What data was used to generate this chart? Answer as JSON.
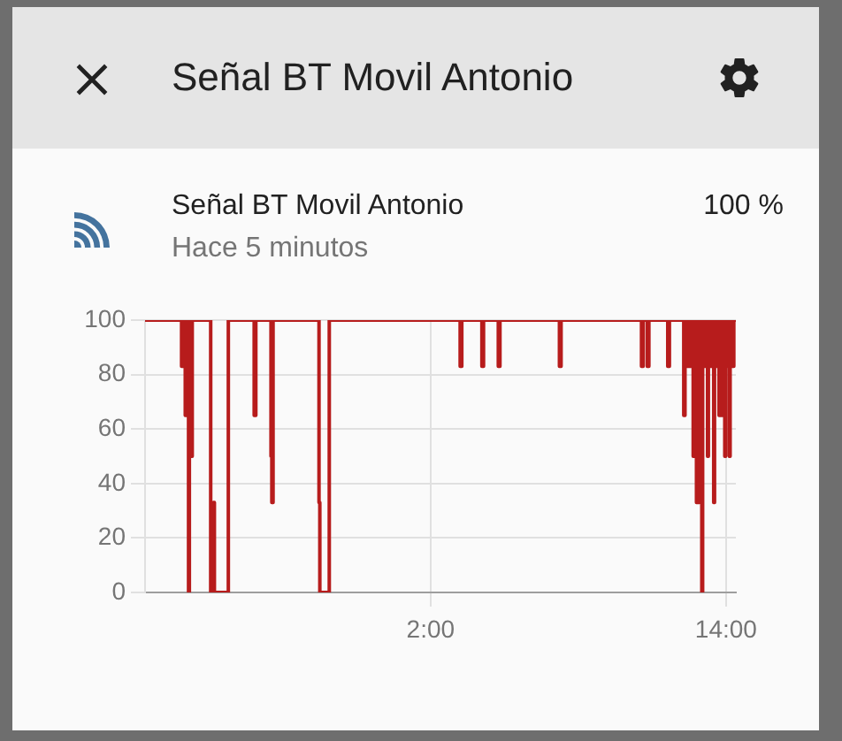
{
  "chart_data": {
    "type": "step",
    "title": "Señal BT Movil Antonio",
    "subtitle": "Hace 5 minutos",
    "annotations": [
      "Señal BT Movil Antonio",
      "100 %"
    ],
    "x": [
      "--01-01T14:24",
      "--01-01T15:53",
      "--01-01T15:55",
      "--01-01T15:57",
      "--01-01T15:59",
      "--01-01T16:02",
      "--01-01T16:04",
      "--01-01T16:06",
      "--01-01T16:08",
      "--01-01T16:10",
      "--01-01T16:12",
      "--01-01T16:14",
      "--01-01T16:17",
      "--01-01T16:19",
      "--01-01T17:04",
      "--01-01T17:11",
      "--01-01T17:13",
      "--01-01T17:47",
      "--01-01T18:50",
      "--01-01T18:54",
      "--01-01T19:31",
      "--01-01T19:33",
      "--01-01T19:36",
      "--01-01T21:28",
      "--01-01T21:30",
      "--01-01T21:53",
      "--01-02T03:12",
      "--01-02T03:16",
      "--01-02T04:05",
      "--01-02T04:09",
      "--01-02T04:45",
      "--01-02T04:49",
      "--01-02T07:14",
      "--01-02T07:18",
      "--01-02T10:34",
      "--01-02T10:38",
      "--01-02T10:48",
      "--01-02T10:52",
      "--01-02T11:38",
      "--01-02T11:42",
      "--01-02T12:17",
      "--01-02T12:20",
      "--01-02T12:22",
      "--01-02T12:24",
      "--01-02T12:26",
      "--01-02T12:28",
      "--01-02T12:30",
      "--01-02T12:32",
      "--01-02T12:34",
      "--01-02T12:36",
      "--01-02T12:38",
      "--01-02T12:40",
      "--01-02T12:42",
      "--01-02T12:44",
      "--01-02T12:46",
      "--01-02T12:48",
      "--01-02T12:51",
      "--01-02T12:53",
      "--01-02T12:55",
      "--01-02T12:57",
      "--01-02T12:59",
      "--01-02T13:01",
      "--01-02T13:03",
      "--01-02T13:05",
      "--01-02T13:07",
      "--01-02T13:09",
      "--01-02T13:11",
      "--01-02T13:13",
      "--01-02T13:15",
      "--01-02T13:17",
      "--01-02T13:19",
      "--01-02T13:21",
      "--01-02T13:23",
      "--01-02T13:25",
      "--01-02T13:30",
      "--01-02T13:32",
      "--01-02T13:36",
      "--01-02T13:38",
      "--01-02T13:40",
      "--01-02T13:43",
      "--01-02T13:45",
      "--01-02T13:47",
      "--01-02T13:49",
      "--01-02T13:50",
      "--01-02T13:52",
      "--01-02T13:54",
      "--01-02T13:56",
      "--01-02T13:57",
      "--01-02T13:59",
      "--01-02T14:01",
      "--01-02T14:03",
      "--01-02T14:05",
      "--01-02T14:07",
      "--01-02T14:08",
      "--01-02T14:10",
      "--01-02T14:13",
      "--01-02T14:15",
      "--01-02T14:17",
      "--01-02T14:19",
      "--01-02T14:24"
    ],
    "values": [
      100,
      83,
      100,
      83,
      100,
      65,
      100,
      83,
      100,
      0,
      100,
      83,
      50,
      100,
      0,
      33,
      0,
      100,
      65,
      100,
      50,
      33,
      100,
      33,
      0,
      100,
      83,
      100,
      83,
      100,
      83,
      100,
      83,
      100,
      83,
      100,
      83,
      100,
      83,
      100,
      65,
      100,
      83,
      100,
      83,
      100,
      83,
      100,
      83,
      100,
      83,
      50,
      100,
      83,
      100,
      33,
      83,
      33,
      100,
      83,
      100,
      0,
      83,
      100,
      83,
      100,
      83,
      100,
      50,
      100,
      83,
      100,
      83,
      100,
      33,
      100,
      83,
      100,
      83,
      65,
      100,
      83,
      100,
      65,
      100,
      83,
      100,
      50,
      100,
      83,
      100,
      83,
      100,
      50,
      100,
      83,
      100,
      83,
      100,
      100
    ],
    "color": "#b71c1c",
    "xlim": [
      "--01-01T14:24",
      "--01-02T14:24"
    ],
    "xticks": [
      {
        "value": "--01-02T02:00",
        "label": "2:00"
      },
      {
        "value": "--01-02T14:00",
        "label": "14:00"
      }
    ],
    "ylim": [
      0,
      100
    ],
    "yticks": [
      0,
      20,
      40,
      60,
      80,
      100
    ],
    "grid": true,
    "legend": false,
    "marker": "none"
  }
}
